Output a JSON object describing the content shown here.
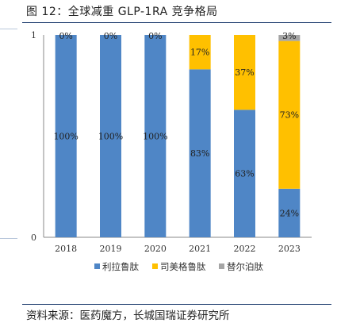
{
  "header": {
    "title": "图 12：全球减重 GLP-1RA 竞争格局"
  },
  "footer": {
    "source": "资料来源：医药魔方，长城国瑞证券研究所"
  },
  "chart_data": {
    "type": "bar",
    "stacked": true,
    "categories": [
      "2018",
      "2019",
      "2020",
      "2021",
      "2022",
      "2023"
    ],
    "series": [
      {
        "name": "利拉鲁肽",
        "color": "#4f86c6",
        "values": [
          100,
          100,
          100,
          83,
          63,
          24
        ]
      },
      {
        "name": "司美格鲁肽",
        "color": "#ffc000",
        "values": [
          0,
          0,
          0,
          17,
          37,
          73
        ]
      },
      {
        "name": "替尔泊肽",
        "color": "#a5a5a5",
        "values": [
          0,
          0,
          0,
          0,
          0,
          3
        ]
      }
    ],
    "value_labels": [
      [
        "100%",
        "100%",
        "100%",
        "83%",
        "63%",
        "24%"
      ],
      [
        "0%",
        "0%",
        "0%",
        "17%",
        "37%",
        "73%"
      ],
      [
        "",
        "",
        "",
        "",
        "",
        "3%"
      ]
    ],
    "y_tick_labels": [
      "0",
      "1"
    ],
    "ylim": [
      0,
      100
    ],
    "legend_position": "bottom",
    "grid": false
  }
}
